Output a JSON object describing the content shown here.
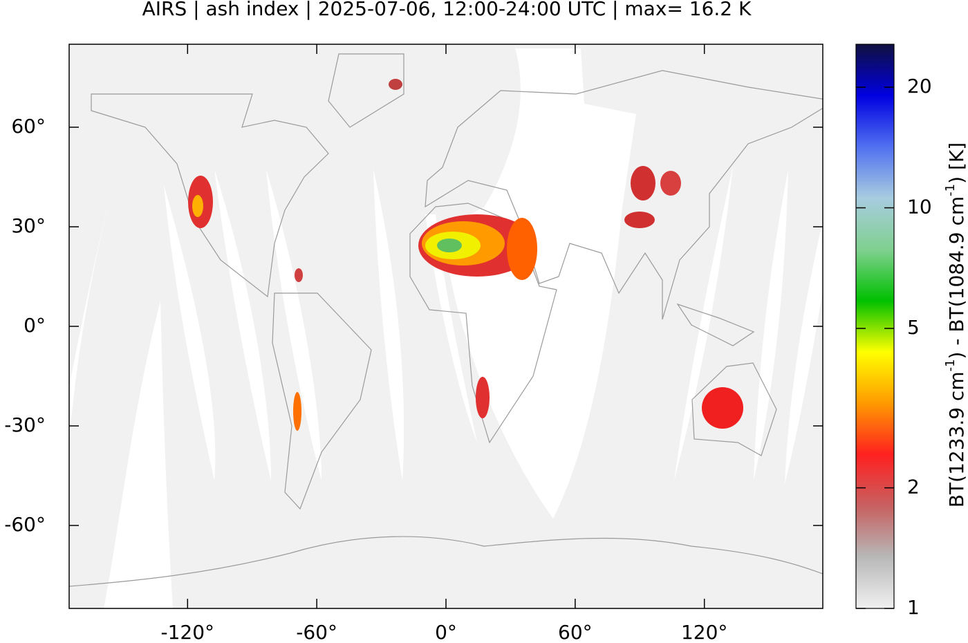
{
  "chart_data": {
    "type": "map",
    "title": "AIRS | ash index | 2025-07-06, 12:00-24:00 UTC | max= 16.2 K",
    "xlim": [
      -175,
      175
    ],
    "ylim": [
      -85,
      85
    ],
    "xticks": [
      {
        "value": -120,
        "label": "-120°"
      },
      {
        "value": -60,
        "label": "-60°"
      },
      {
        "value": 0,
        "label": "0°"
      },
      {
        "value": 60,
        "label": "60°"
      },
      {
        "value": 120,
        "label": "120°"
      }
    ],
    "yticks": [
      {
        "value": 60,
        "label": "60°"
      },
      {
        "value": 30,
        "label": "30°"
      },
      {
        "value": 0,
        "label": "0°"
      },
      {
        "value": -30,
        "label": "-30°"
      },
      {
        "value": -60,
        "label": "-60°"
      }
    ],
    "colorbar": {
      "label": [
        "BT(1233.9 cm",
        "-1",
        ") - BT(1084.9 cm",
        "-1",
        ") [K]"
      ],
      "log": true,
      "clim": [
        1,
        25.6
      ],
      "ticks": [
        1,
        2,
        5,
        10,
        20
      ],
      "colormap": [
        "#f0f0f0",
        "#b8b8b8",
        "#c86060",
        "#ff2020",
        "#ff9a00",
        "#ffff00",
        "#00c000",
        "#80d090",
        "#a8cce0",
        "#5070f0",
        "#0000e0",
        "#101040"
      ]
    }
  }
}
